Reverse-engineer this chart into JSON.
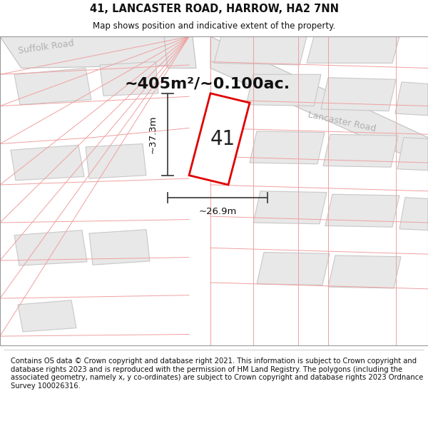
{
  "title": "41, LANCASTER ROAD, HARROW, HA2 7NN",
  "subtitle": "Map shows position and indicative extent of the property.",
  "footer": "Contains OS data © Crown copyright and database right 2021. This information is subject to Crown copyright and database rights 2023 and is reproduced with the permission of HM Land Registry. The polygons (including the associated geometry, namely x, y co-ordinates) are subject to Crown copyright and database rights 2023 Ordnance Survey 100026316.",
  "area_label": "~405m²/~0.100ac.",
  "width_label": "~26.9m",
  "height_label": "~37.3m",
  "plot_number": "41",
  "map_bg": "#ffffff",
  "building_fill": "#e8e8e8",
  "building_edge": "#c8c8c8",
  "road_fill": "#e8e8e8",
  "road_edge": "#c0c0c0",
  "pink_line": "#f0a0a0",
  "red_polygon": "#e00000",
  "dim_color": "#444444",
  "title_color": "#111111",
  "road_label_color": "#b0b0b0",
  "footer_color": "#111111",
  "title_fontsize": 10.5,
  "subtitle_fontsize": 8.5,
  "footer_fontsize": 7.2,
  "area_fontsize": 16,
  "plot_num_fontsize": 20,
  "dim_fontsize": 9.5,
  "road_label_fontsize": 9
}
